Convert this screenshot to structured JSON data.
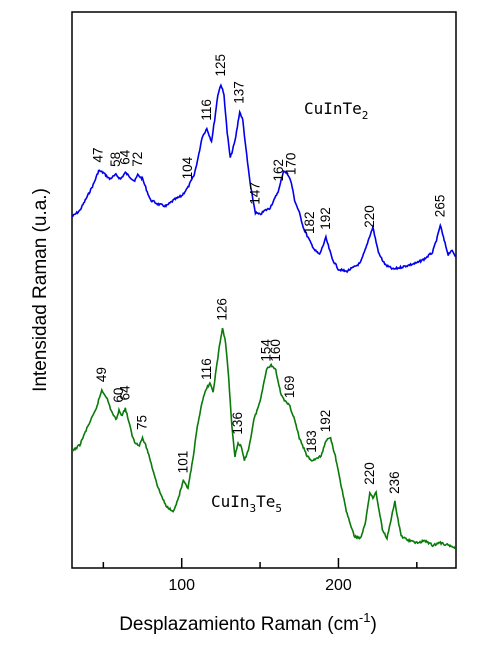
{
  "chart_data": {
    "type": "line",
    "xlabel": "Desplazamiento Raman",
    "xlabel_unit": "(cm",
    "xlabel_unit_sup": "-1",
    "xlabel_unit_end": ")",
    "ylabel": "Intensidad Raman  (u.a.)",
    "xlim": [
      30,
      275
    ],
    "xticks": [
      100,
      200
    ],
    "yticks": "none",
    "grid": false,
    "legend": "none",
    "series": [
      {
        "label_parts": [
          "CuInTe",
          "2",
          ""
        ],
        "color": "#0000ee",
        "peak_labels": [
          47,
          58,
          64,
          72,
          104,
          116,
          125,
          137,
          147,
          162,
          170,
          182,
          192,
          220,
          265
        ],
        "x": [
          30,
          35,
          40,
          44,
          47,
          50,
          54,
          58,
          61,
          64,
          67,
          70,
          72,
          75,
          80,
          85,
          90,
          95,
          100,
          104,
          108,
          111,
          113,
          116,
          119,
          121,
          123,
          125,
          127,
          129,
          131,
          134,
          137,
          139,
          141,
          144,
          147,
          150,
          153,
          156,
          159,
          162,
          165,
          168,
          170,
          172,
          175,
          178,
          182,
          185,
          188,
          190,
          192,
          194,
          196,
          200,
          205,
          210,
          214,
          217,
          220,
          222,
          224,
          226,
          230,
          235,
          240,
          245,
          250,
          255,
          260,
          263,
          265,
          267,
          270,
          272,
          275
        ],
        "y": [
          0.42,
          0.45,
          0.52,
          0.58,
          0.64,
          0.63,
          0.6,
          0.62,
          0.6,
          0.63,
          0.61,
          0.59,
          0.62,
          0.6,
          0.5,
          0.48,
          0.47,
          0.5,
          0.52,
          0.56,
          0.62,
          0.72,
          0.8,
          0.84,
          0.78,
          0.88,
          1.0,
          1.05,
          1.0,
          0.82,
          0.7,
          0.78,
          0.92,
          0.88,
          0.74,
          0.56,
          0.44,
          0.43,
          0.45,
          0.46,
          0.5,
          0.55,
          0.64,
          0.62,
          0.58,
          0.5,
          0.44,
          0.36,
          0.3,
          0.26,
          0.24,
          0.28,
          0.32,
          0.27,
          0.22,
          0.17,
          0.16,
          0.18,
          0.2,
          0.26,
          0.33,
          0.37,
          0.3,
          0.24,
          0.19,
          0.17,
          0.18,
          0.19,
          0.2,
          0.22,
          0.25,
          0.32,
          0.38,
          0.32,
          0.24,
          0.26,
          0.23
        ]
      },
      {
        "label_parts": [
          "CuIn",
          "3",
          "Te",
          "5",
          ""
        ],
        "color": "#0a7a0a",
        "peak_labels": [
          49,
          60,
          64,
          75,
          101,
          116,
          126,
          136,
          154,
          160,
          169,
          183,
          192,
          220,
          236
        ],
        "x": [
          30,
          35,
          40,
          45,
          49,
          52,
          55,
          58,
          60,
          62,
          64,
          66,
          68,
          70,
          73,
          75,
          78,
          80,
          85,
          90,
          95,
          98,
          101,
          104,
          107,
          110,
          113,
          116,
          118,
          120,
          122,
          124,
          126,
          128,
          130,
          132,
          134,
          136,
          138,
          140,
          143,
          146,
          150,
          154,
          157,
          160,
          163,
          166,
          169,
          172,
          175,
          180,
          183,
          186,
          189,
          192,
          195,
          198,
          200,
          205,
          210,
          214,
          217,
          220,
          222,
          224,
          226,
          228,
          231,
          234,
          236,
          238,
          240,
          245,
          250,
          255,
          260,
          265,
          270,
          275
        ],
        "y": [
          0.44,
          0.47,
          0.55,
          0.62,
          0.71,
          0.68,
          0.62,
          0.58,
          0.62,
          0.6,
          0.63,
          0.58,
          0.52,
          0.48,
          0.47,
          0.5,
          0.45,
          0.4,
          0.28,
          0.2,
          0.18,
          0.24,
          0.31,
          0.28,
          0.4,
          0.55,
          0.66,
          0.72,
          0.74,
          0.7,
          0.8,
          0.9,
          0.98,
          0.92,
          0.76,
          0.55,
          0.42,
          0.48,
          0.46,
          0.4,
          0.46,
          0.58,
          0.66,
          0.8,
          0.82,
          0.8,
          0.7,
          0.66,
          0.64,
          0.58,
          0.5,
          0.42,
          0.4,
          0.41,
          0.42,
          0.49,
          0.5,
          0.42,
          0.35,
          0.18,
          0.07,
          0.06,
          0.12,
          0.26,
          0.24,
          0.26,
          0.18,
          0.1,
          0.06,
          0.16,
          0.22,
          0.14,
          0.07,
          0.05,
          0.04,
          0.05,
          0.03,
          0.04,
          0.03,
          0.02
        ]
      }
    ]
  }
}
